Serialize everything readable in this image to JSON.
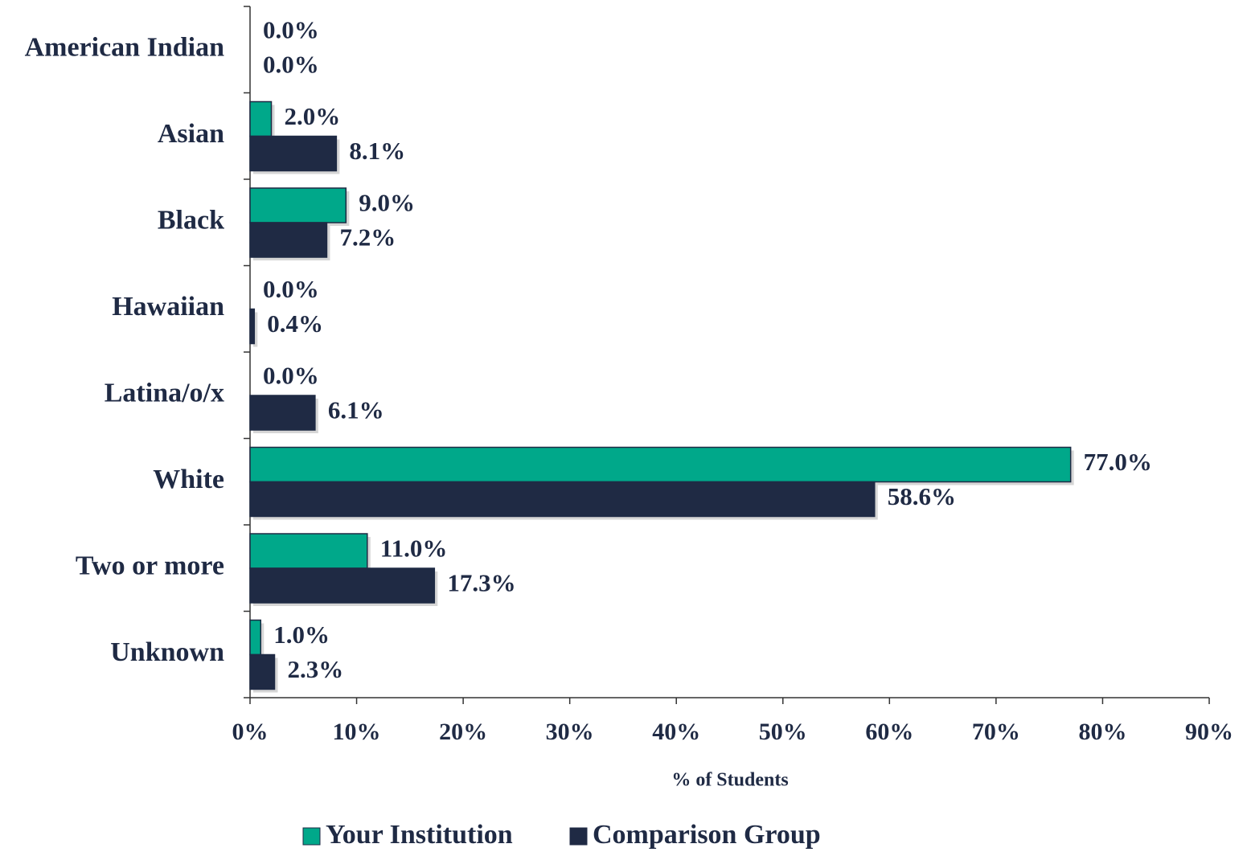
{
  "chart_data": {
    "type": "hbar",
    "x_label": "% of Students",
    "categories": [
      "American Indian",
      "Asian",
      "Black",
      "Hawaiian",
      "Latina/o/x",
      "White",
      "Two or more",
      "Unknown"
    ],
    "series": [
      {
        "name": "Your Institution",
        "color": "#00a88a",
        "values": [
          0,
          2.0,
          9.0,
          0,
          0,
          77.0,
          11.0,
          1.0
        ],
        "value_labels": [
          "0.0%",
          "2.0%",
          "9.0%",
          "0.0%",
          "0.0%",
          "77.0%",
          "11.0%",
          "1.0%"
        ]
      },
      {
        "name": "Comparison Group",
        "color": "#1f2a44",
        "values": [
          0,
          8.1,
          7.2,
          0.4,
          6.1,
          58.6,
          17.3,
          2.3
        ],
        "value_labels": [
          "0.0%",
          "8.1%",
          "7.2%",
          "0.4%",
          "6.1%",
          "58.6%",
          "17.3%",
          "2.3%"
        ]
      }
    ],
    "xlim": [
      0,
      90
    ],
    "xticks": [
      {
        "value": 0,
        "label": "0%"
      },
      {
        "value": 10,
        "label": "10%"
      },
      {
        "value": 20,
        "label": "20%"
      },
      {
        "value": 30,
        "label": "30%"
      },
      {
        "value": 40,
        "label": "40%"
      },
      {
        "value": 50,
        "label": "50%"
      },
      {
        "value": 60,
        "label": "60%"
      },
      {
        "value": 70,
        "label": "70%"
      },
      {
        "value": 80,
        "label": "80%"
      },
      {
        "value": 90,
        "label": "90%"
      }
    ],
    "legend": "bottom"
  }
}
